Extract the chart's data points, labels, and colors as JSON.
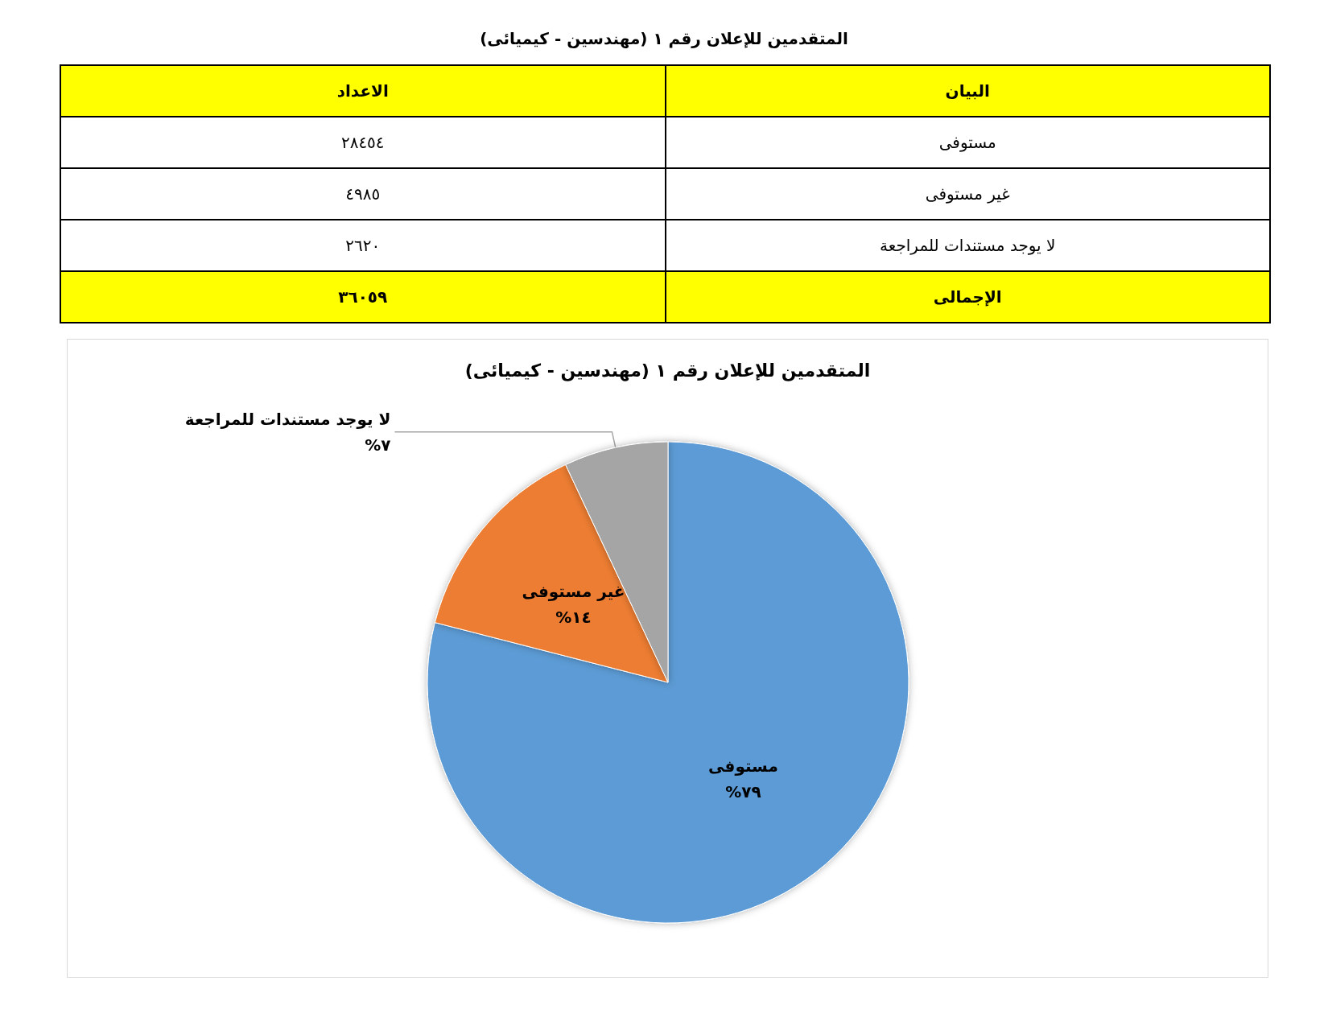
{
  "chart_data": [
    {
      "type": "other",
      "title": "المتقدمين للإعلان رقم ١ (مهندسين - كيميائى)",
      "annotations": [
        "البيان",
        "الاعداد",
        "مستوفى",
        "٢٨٤٥٤",
        "غير مستوفى",
        "٤٩٨٥",
        "لا يوجد مستندات للمراجعة",
        "٢٦٢٠",
        "الإجمالى",
        "٣٦٠٥٩"
      ]
    },
    {
      "type": "pie",
      "title": "المتقدمين للإعلان رقم ١ (مهندسين - كيميائى)",
      "categories": [
        "مستوفى",
        "غير مستوفى",
        "لا يوجد مستندات للمراجعة"
      ],
      "values": [
        79,
        14,
        7
      ],
      "colors": [
        "#5b9bd5",
        "#ed7d31",
        "#a5a5a5"
      ],
      "value_labels": [
        "٧٩%",
        "١٤%",
        "٧%"
      ]
    }
  ]
}
